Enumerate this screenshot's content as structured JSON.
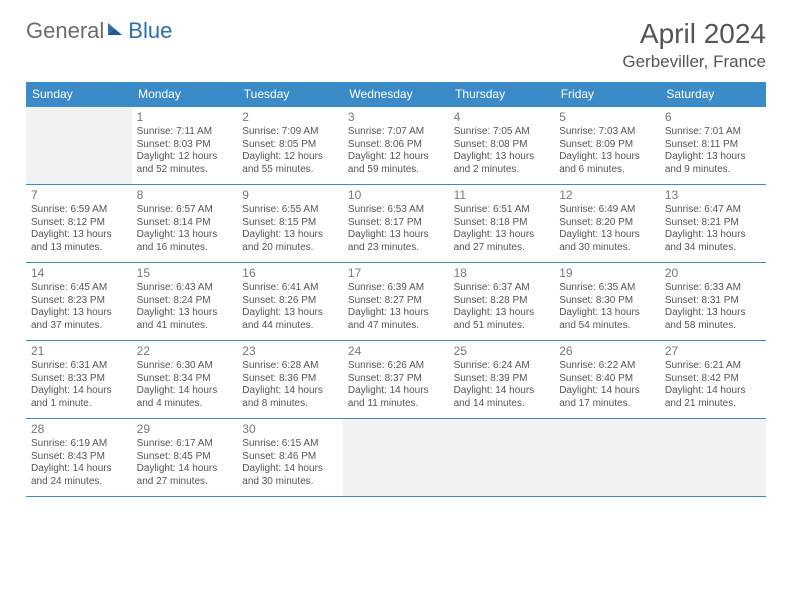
{
  "logo": {
    "part1": "General",
    "part2": "Blue"
  },
  "title": "April 2024",
  "location": "Gerbeviller, France",
  "colors": {
    "header_bg": "#3b8bc9",
    "header_text": "#ffffff",
    "border": "#3b8bc9",
    "empty_bg": "#f2f2f2",
    "text": "#555555",
    "logo_gray": "#6b6b6b",
    "logo_blue": "#2b6fb0"
  },
  "weekdays": [
    "Sunday",
    "Monday",
    "Tuesday",
    "Wednesday",
    "Thursday",
    "Friday",
    "Saturday"
  ],
  "weeks": [
    [
      {
        "day": "",
        "empty": true
      },
      {
        "day": "1",
        "sunrise": "Sunrise: 7:11 AM",
        "sunset": "Sunset: 8:03 PM",
        "daylight1": "Daylight: 12 hours",
        "daylight2": "and 52 minutes."
      },
      {
        "day": "2",
        "sunrise": "Sunrise: 7:09 AM",
        "sunset": "Sunset: 8:05 PM",
        "daylight1": "Daylight: 12 hours",
        "daylight2": "and 55 minutes."
      },
      {
        "day": "3",
        "sunrise": "Sunrise: 7:07 AM",
        "sunset": "Sunset: 8:06 PM",
        "daylight1": "Daylight: 12 hours",
        "daylight2": "and 59 minutes."
      },
      {
        "day": "4",
        "sunrise": "Sunrise: 7:05 AM",
        "sunset": "Sunset: 8:08 PM",
        "daylight1": "Daylight: 13 hours",
        "daylight2": "and 2 minutes."
      },
      {
        "day": "5",
        "sunrise": "Sunrise: 7:03 AM",
        "sunset": "Sunset: 8:09 PM",
        "daylight1": "Daylight: 13 hours",
        "daylight2": "and 6 minutes."
      },
      {
        "day": "6",
        "sunrise": "Sunrise: 7:01 AM",
        "sunset": "Sunset: 8:11 PM",
        "daylight1": "Daylight: 13 hours",
        "daylight2": "and 9 minutes."
      }
    ],
    [
      {
        "day": "7",
        "sunrise": "Sunrise: 6:59 AM",
        "sunset": "Sunset: 8:12 PM",
        "daylight1": "Daylight: 13 hours",
        "daylight2": "and 13 minutes."
      },
      {
        "day": "8",
        "sunrise": "Sunrise: 6:57 AM",
        "sunset": "Sunset: 8:14 PM",
        "daylight1": "Daylight: 13 hours",
        "daylight2": "and 16 minutes."
      },
      {
        "day": "9",
        "sunrise": "Sunrise: 6:55 AM",
        "sunset": "Sunset: 8:15 PM",
        "daylight1": "Daylight: 13 hours",
        "daylight2": "and 20 minutes."
      },
      {
        "day": "10",
        "sunrise": "Sunrise: 6:53 AM",
        "sunset": "Sunset: 8:17 PM",
        "daylight1": "Daylight: 13 hours",
        "daylight2": "and 23 minutes."
      },
      {
        "day": "11",
        "sunrise": "Sunrise: 6:51 AM",
        "sunset": "Sunset: 8:18 PM",
        "daylight1": "Daylight: 13 hours",
        "daylight2": "and 27 minutes."
      },
      {
        "day": "12",
        "sunrise": "Sunrise: 6:49 AM",
        "sunset": "Sunset: 8:20 PM",
        "daylight1": "Daylight: 13 hours",
        "daylight2": "and 30 minutes."
      },
      {
        "day": "13",
        "sunrise": "Sunrise: 6:47 AM",
        "sunset": "Sunset: 8:21 PM",
        "daylight1": "Daylight: 13 hours",
        "daylight2": "and 34 minutes."
      }
    ],
    [
      {
        "day": "14",
        "sunrise": "Sunrise: 6:45 AM",
        "sunset": "Sunset: 8:23 PM",
        "daylight1": "Daylight: 13 hours",
        "daylight2": "and 37 minutes."
      },
      {
        "day": "15",
        "sunrise": "Sunrise: 6:43 AM",
        "sunset": "Sunset: 8:24 PM",
        "daylight1": "Daylight: 13 hours",
        "daylight2": "and 41 minutes."
      },
      {
        "day": "16",
        "sunrise": "Sunrise: 6:41 AM",
        "sunset": "Sunset: 8:26 PM",
        "daylight1": "Daylight: 13 hours",
        "daylight2": "and 44 minutes."
      },
      {
        "day": "17",
        "sunrise": "Sunrise: 6:39 AM",
        "sunset": "Sunset: 8:27 PM",
        "daylight1": "Daylight: 13 hours",
        "daylight2": "and 47 minutes."
      },
      {
        "day": "18",
        "sunrise": "Sunrise: 6:37 AM",
        "sunset": "Sunset: 8:28 PM",
        "daylight1": "Daylight: 13 hours",
        "daylight2": "and 51 minutes."
      },
      {
        "day": "19",
        "sunrise": "Sunrise: 6:35 AM",
        "sunset": "Sunset: 8:30 PM",
        "daylight1": "Daylight: 13 hours",
        "daylight2": "and 54 minutes."
      },
      {
        "day": "20",
        "sunrise": "Sunrise: 6:33 AM",
        "sunset": "Sunset: 8:31 PM",
        "daylight1": "Daylight: 13 hours",
        "daylight2": "and 58 minutes."
      }
    ],
    [
      {
        "day": "21",
        "sunrise": "Sunrise: 6:31 AM",
        "sunset": "Sunset: 8:33 PM",
        "daylight1": "Daylight: 14 hours",
        "daylight2": "and 1 minute."
      },
      {
        "day": "22",
        "sunrise": "Sunrise: 6:30 AM",
        "sunset": "Sunset: 8:34 PM",
        "daylight1": "Daylight: 14 hours",
        "daylight2": "and 4 minutes."
      },
      {
        "day": "23",
        "sunrise": "Sunrise: 6:28 AM",
        "sunset": "Sunset: 8:36 PM",
        "daylight1": "Daylight: 14 hours",
        "daylight2": "and 8 minutes."
      },
      {
        "day": "24",
        "sunrise": "Sunrise: 6:26 AM",
        "sunset": "Sunset: 8:37 PM",
        "daylight1": "Daylight: 14 hours",
        "daylight2": "and 11 minutes."
      },
      {
        "day": "25",
        "sunrise": "Sunrise: 6:24 AM",
        "sunset": "Sunset: 8:39 PM",
        "daylight1": "Daylight: 14 hours",
        "daylight2": "and 14 minutes."
      },
      {
        "day": "26",
        "sunrise": "Sunrise: 6:22 AM",
        "sunset": "Sunset: 8:40 PM",
        "daylight1": "Daylight: 14 hours",
        "daylight2": "and 17 minutes."
      },
      {
        "day": "27",
        "sunrise": "Sunrise: 6:21 AM",
        "sunset": "Sunset: 8:42 PM",
        "daylight1": "Daylight: 14 hours",
        "daylight2": "and 21 minutes."
      }
    ],
    [
      {
        "day": "28",
        "sunrise": "Sunrise: 6:19 AM",
        "sunset": "Sunset: 8:43 PM",
        "daylight1": "Daylight: 14 hours",
        "daylight2": "and 24 minutes."
      },
      {
        "day": "29",
        "sunrise": "Sunrise: 6:17 AM",
        "sunset": "Sunset: 8:45 PM",
        "daylight1": "Daylight: 14 hours",
        "daylight2": "and 27 minutes."
      },
      {
        "day": "30",
        "sunrise": "Sunrise: 6:15 AM",
        "sunset": "Sunset: 8:46 PM",
        "daylight1": "Daylight: 14 hours",
        "daylight2": "and 30 minutes."
      },
      {
        "day": "",
        "empty": true
      },
      {
        "day": "",
        "empty": true
      },
      {
        "day": "",
        "empty": true
      },
      {
        "day": "",
        "empty": true
      }
    ]
  ]
}
